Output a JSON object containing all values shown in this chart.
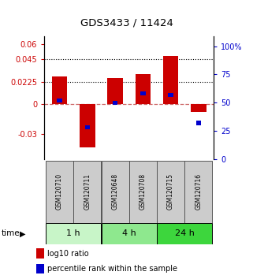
{
  "title": "GDS3433 / 11424",
  "samples": [
    "GSM120710",
    "GSM120711",
    "GSM120648",
    "GSM120708",
    "GSM120715",
    "GSM120716"
  ],
  "log10_ratio": [
    0.028,
    -0.043,
    0.026,
    0.03,
    0.048,
    -0.008
  ],
  "percentile_rank": [
    52,
    28,
    50,
    58,
    57,
    32
  ],
  "groups": [
    {
      "label": "1 h",
      "indices": [
        0,
        1
      ],
      "color": "#c8f5c8"
    },
    {
      "label": "4 h",
      "indices": [
        2,
        3
      ],
      "color": "#8ee88e"
    },
    {
      "label": "24 h",
      "indices": [
        4,
        5
      ],
      "color": "#3dd63d"
    }
  ],
  "ylim_left": [
    -0.055,
    0.068
  ],
  "ylim_right": [
    0,
    108.8
  ],
  "yticks_left": [
    -0.03,
    0,
    0.0225,
    0.045,
    0.06
  ],
  "ytick_labels_left": [
    "-0.03",
    "0",
    "0.0225",
    "0.045",
    "0.06"
  ],
  "yticks_right": [
    0,
    25,
    50,
    75,
    100
  ],
  "ytick_labels_right": [
    "0",
    "25",
    "50",
    "75",
    "100%"
  ],
  "hlines": [
    0.0225,
    0.045
  ],
  "bar_color_red": "#cc0000",
  "bar_color_blue": "#0000cc",
  "bar_width": 0.55,
  "blue_square_size": 0.18,
  "time_label": "time",
  "legend_red": "log10 ratio",
  "legend_blue": "percentile rank within the sample",
  "plot_bg": "#ffffff",
  "sample_box_color": "#cccccc",
  "sample_box_edge": "#555555"
}
